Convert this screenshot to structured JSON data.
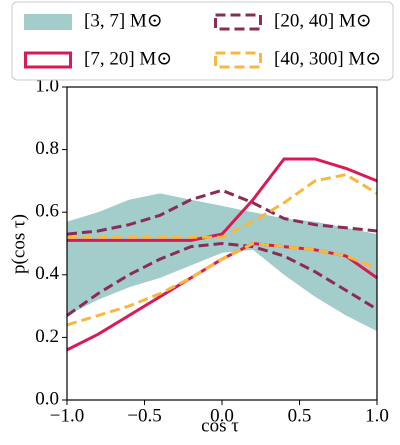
{
  "chart_data": {
    "type": "band-line",
    "xlabel": "cos τ",
    "ylabel": "p(cos τ)",
    "xlim": [
      -1.0,
      1.0
    ],
    "ylim": [
      0.0,
      1.0
    ],
    "xticks": [
      {
        "value": -1.0,
        "label": "−1.0"
      },
      {
        "value": -0.5,
        "label": "−0.5"
      },
      {
        "value": 0.0,
        "label": "0.0"
      },
      {
        "value": 0.5,
        "label": "0.5"
      },
      {
        "value": 1.0,
        "label": "1.0"
      }
    ],
    "yticks": [
      {
        "value": 0.0,
        "label": "0.0"
      },
      {
        "value": 0.2,
        "label": "0.2"
      },
      {
        "value": 0.4,
        "label": "0.4"
      },
      {
        "value": 0.6,
        "label": "0.6"
      },
      {
        "value": 0.8,
        "label": "0.8"
      },
      {
        "value": 1.0,
        "label": "1.0"
      }
    ],
    "x": [
      -1.0,
      -0.8,
      -0.6,
      -0.4,
      -0.2,
      0.0,
      0.2,
      0.4,
      0.6,
      0.8,
      1.0
    ],
    "series": [
      {
        "name": "[3, 7] M⊙",
        "color": "#a3cdca",
        "style": "fill",
        "upper": [
          0.57,
          0.6,
          0.64,
          0.66,
          0.64,
          0.62,
          0.6,
          0.58,
          0.57,
          0.55,
          0.53
        ],
        "lower": [
          0.27,
          0.32,
          0.36,
          0.39,
          0.43,
          0.47,
          0.48,
          0.4,
          0.33,
          0.27,
          0.22
        ]
      },
      {
        "name": "[7, 20] M⊙",
        "color": "#d81b55",
        "style": "solid",
        "upper": [
          0.51,
          0.51,
          0.51,
          0.51,
          0.51,
          0.53,
          0.64,
          0.77,
          0.77,
          0.74,
          0.7
        ],
        "lower": [
          0.16,
          0.21,
          0.27,
          0.33,
          0.39,
          0.45,
          0.5,
          0.49,
          0.48,
          0.46,
          0.39
        ]
      },
      {
        "name": "[20, 40] M⊙",
        "color": "#8c2b55",
        "style": "dashed",
        "upper": [
          0.53,
          0.54,
          0.56,
          0.59,
          0.64,
          0.67,
          0.63,
          0.58,
          0.56,
          0.55,
          0.54
        ],
        "lower": [
          0.27,
          0.34,
          0.4,
          0.45,
          0.49,
          0.5,
          0.49,
          0.46,
          0.41,
          0.35,
          0.29
        ]
      },
      {
        "name": "[40, 300] M⊙",
        "color": "#f8b73d",
        "style": "dashed",
        "upper": [
          0.52,
          0.52,
          0.52,
          0.52,
          0.52,
          0.52,
          0.57,
          0.63,
          0.7,
          0.72,
          0.66
        ],
        "lower": [
          0.24,
          0.27,
          0.3,
          0.34,
          0.39,
          0.45,
          0.5,
          0.49,
          0.48,
          0.46,
          0.42
        ]
      }
    ]
  }
}
